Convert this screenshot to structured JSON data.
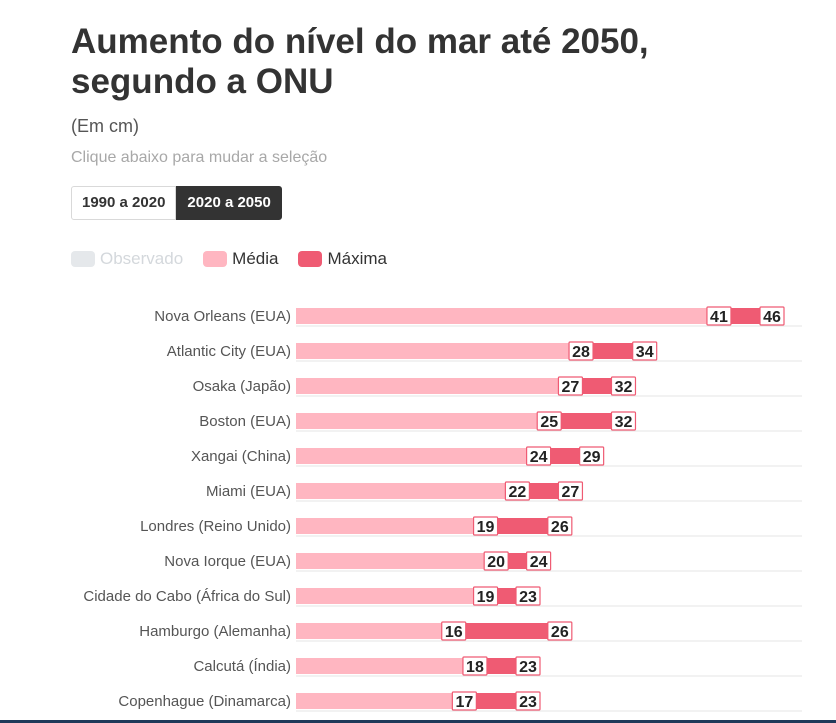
{
  "header": {
    "title": "Aumento do nível do mar até 2050, segundo a ONU",
    "subtitle": "(Em cm)",
    "hint": "Clique abaixo para mudar a seleção"
  },
  "toggle": {
    "options": [
      "1990 a 2020",
      "2020 a 2050"
    ],
    "selected": "2020 a 2050"
  },
  "legend": {
    "items": [
      {
        "label": "Observado",
        "color": "#e5e8eb",
        "state": "inactive"
      },
      {
        "label": "Média",
        "color": "#ffb6c1",
        "state": "active"
      },
      {
        "label": "Máxima",
        "color": "#ef5b73",
        "state": "active"
      }
    ]
  },
  "colors": {
    "media": "#ffb6c1",
    "maxima": "#ef5b73",
    "label_outline": "#ef5b73",
    "grid": "#e6e6e6"
  },
  "chart_data": {
    "type": "bar",
    "orientation": "horizontal",
    "categories": [
      "Nova Orleans (EUA)",
      "Atlantic City (EUA)",
      "Osaka (Japão)",
      "Boston (EUA)",
      "Xangai (China)",
      "Miami (EUA)",
      "Londres (Reino Unido)",
      "Nova Iorque (EUA)",
      "Cidade do Cabo (África do Sul)",
      "Hamburgo (Alemanha)",
      "Calcutá (Índia)",
      "Copenhague (Dinamarca)"
    ],
    "series": [
      {
        "name": "Média",
        "values": [
          41,
          28,
          27,
          25,
          24,
          22,
          19,
          20,
          19,
          16,
          18,
          17
        ]
      },
      {
        "name": "Máxima",
        "values": [
          46,
          34,
          32,
          32,
          29,
          27,
          26,
          24,
          23,
          26,
          23,
          23
        ]
      }
    ],
    "xlim": [
      0,
      46
    ],
    "grid": true,
    "legend_position": "top-left"
  }
}
